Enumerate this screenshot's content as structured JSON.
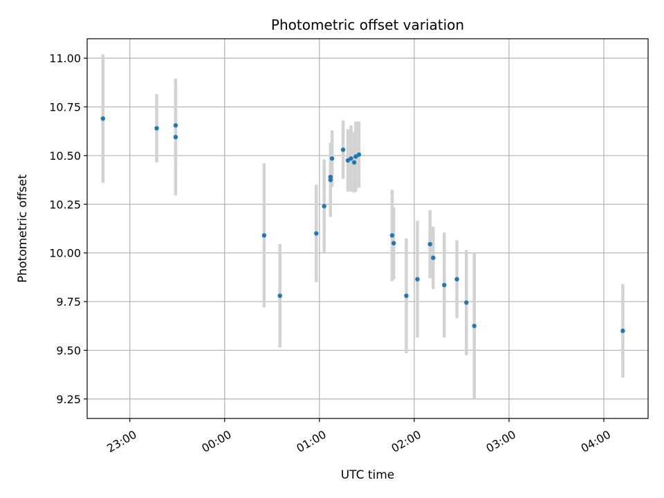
{
  "chart_data": {
    "type": "scatter",
    "title": "Photometric offset variation",
    "xlabel": "UTC time",
    "ylabel": "Photometric offset",
    "grid": true,
    "xlim": [
      "22:33",
      "04:28"
    ],
    "ylim": [
      9.15,
      11.1
    ],
    "x_ticks": [
      "23:00",
      "00:00",
      "01:00",
      "02:00",
      "03:00",
      "04:00"
    ],
    "y_ticks": [
      9.25,
      9.5,
      9.75,
      10.0,
      10.25,
      10.5,
      10.75,
      11.0
    ],
    "y_tick_labels": [
      "9.25",
      "9.50",
      "9.75",
      "10.00",
      "10.25",
      "10.50",
      "10.75",
      "11.00"
    ],
    "marker_color": "#1f77b4",
    "errorbar_color": "#d3d3d3",
    "points": [
      {
        "x": "22:43",
        "y": 10.69,
        "err": 0.33
      },
      {
        "x": "23:17",
        "y": 10.64,
        "err": 0.175
      },
      {
        "x": "23:29",
        "y": 10.655,
        "err": 0.2
      },
      {
        "x": "23:29",
        "y": 10.595,
        "err": 0.3
      },
      {
        "x": "00:25",
        "y": 10.09,
        "err": 0.37
      },
      {
        "x": "00:35",
        "y": 9.78,
        "err": 0.265
      },
      {
        "x": "00:58",
        "y": 10.1,
        "err": 0.25
      },
      {
        "x": "01:03",
        "y": 10.24,
        "err": 0.24
      },
      {
        "x": "01:07",
        "y": 10.375,
        "err": 0.19
      },
      {
        "x": "01:07",
        "y": 10.39,
        "err": 0.175
      },
      {
        "x": "01:08",
        "y": 10.485,
        "err": 0.145
      },
      {
        "x": "01:15",
        "y": 10.53,
        "err": 0.15
      },
      {
        "x": "01:18",
        "y": 10.475,
        "err": 0.16
      },
      {
        "x": "01:20",
        "y": 10.485,
        "err": 0.17
      },
      {
        "x": "01:22",
        "y": 10.465,
        "err": 0.155
      },
      {
        "x": "01:23",
        "y": 10.495,
        "err": 0.18
      },
      {
        "x": "01:25",
        "y": 10.505,
        "err": 0.17
      },
      {
        "x": "01:46",
        "y": 10.09,
        "err": 0.235
      },
      {
        "x": "01:47",
        "y": 10.05,
        "err": 0.185
      },
      {
        "x": "01:55",
        "y": 9.78,
        "err": 0.295
      },
      {
        "x": "02:02",
        "y": 9.865,
        "err": 0.3
      },
      {
        "x": "02:10",
        "y": 10.045,
        "err": 0.175
      },
      {
        "x": "02:12",
        "y": 9.975,
        "err": 0.16
      },
      {
        "x": "02:19",
        "y": 9.835,
        "err": 0.27
      },
      {
        "x": "02:27",
        "y": 9.865,
        "err": 0.2
      },
      {
        "x": "02:33",
        "y": 9.745,
        "err": 0.27
      },
      {
        "x": "02:38",
        "y": 9.625,
        "err": 0.375
      },
      {
        "x": "04:12",
        "y": 9.6,
        "err": 0.24
      }
    ]
  }
}
